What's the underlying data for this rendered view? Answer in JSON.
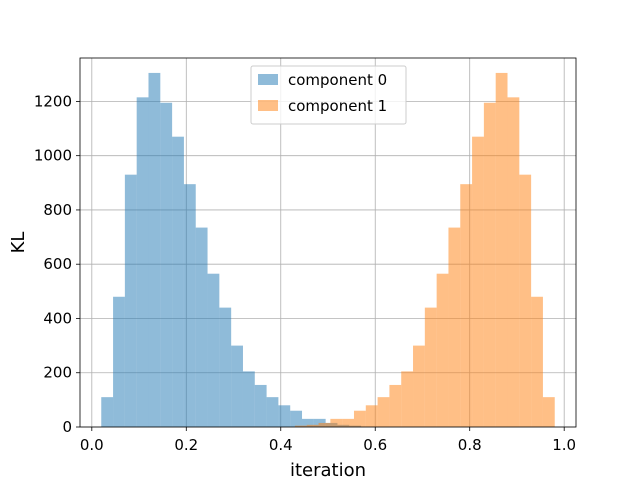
{
  "chart_data": {
    "type": "bar",
    "xlabel": "iteration",
    "ylabel": "KL",
    "xlim": [
      -0.025,
      1.025
    ],
    "ylim": [
      0,
      1360
    ],
    "xticks": [
      0.0,
      0.2,
      0.4,
      0.6,
      0.8,
      1.0
    ],
    "xtick_labels": [
      "0.0",
      "0.2",
      "0.4",
      "0.6",
      "0.8",
      "1.0"
    ],
    "yticks": [
      0,
      200,
      400,
      600,
      800,
      1000,
      1200
    ],
    "ytick_labels": [
      "0",
      "200",
      "400",
      "600",
      "800",
      "1000",
      "1200"
    ],
    "grid": true,
    "legend_position": "upper center",
    "series": [
      {
        "name": "component 0",
        "color": "#1f77b4",
        "opacity": 0.5,
        "bin_edges": [
          0.02,
          0.045,
          0.07,
          0.095,
          0.12,
          0.145,
          0.17,
          0.195,
          0.22,
          0.245,
          0.27,
          0.295,
          0.32,
          0.345,
          0.37,
          0.395,
          0.42,
          0.445,
          0.47,
          0.495,
          0.52,
          0.545,
          0.57
        ],
        "counts": [
          110,
          480,
          930,
          1215,
          1305,
          1195,
          1070,
          895,
          735,
          565,
          440,
          300,
          205,
          155,
          110,
          80,
          60,
          30,
          30,
          15,
          8,
          5
        ]
      },
      {
        "name": "component 1",
        "color": "#ff7f0e",
        "opacity": 0.5,
        "bin_edges": [
          0.43,
          0.455,
          0.48,
          0.505,
          0.53,
          0.555,
          0.58,
          0.605,
          0.63,
          0.655,
          0.68,
          0.705,
          0.73,
          0.755,
          0.78,
          0.805,
          0.83,
          0.855,
          0.88,
          0.905,
          0.93,
          0.955,
          0.98
        ],
        "counts": [
          5,
          8,
          15,
          30,
          30,
          60,
          80,
          110,
          155,
          205,
          300,
          440,
          565,
          735,
          895,
          1070,
          1195,
          1305,
          1215,
          930,
          480,
          110
        ]
      }
    ]
  }
}
